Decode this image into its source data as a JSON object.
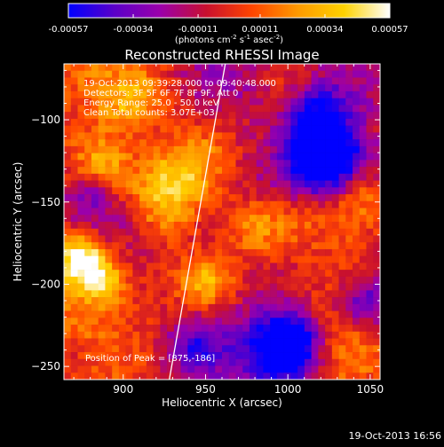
{
  "colorbar": {
    "ticks": [
      "-0.00057",
      "-0.00034",
      "-0.00011",
      "0.00011",
      "0.00034",
      "0.00057"
    ],
    "tick_values": [
      -0.00057,
      -0.00034,
      -0.00011,
      0.00011,
      0.00034,
      0.00057
    ],
    "range": [
      -0.00057,
      0.00057
    ],
    "units_parts": [
      "(photons cm",
      "-2",
      " s",
      "-1",
      " asec",
      "-2",
      ")"
    ],
    "colormap": [
      "#0000ff",
      "#5a00c8",
      "#9b00aa",
      "#c8102f",
      "#ff4500",
      "#ff9a00",
      "#ffd200",
      "#ffffff"
    ]
  },
  "chart_data": {
    "type": "heatmap",
    "title": "Reconstructed RHESSI Image",
    "xlabel": "Heliocentric X (arcsec)",
    "ylabel": "Heliocentric Y (arcsec)",
    "xlim": [
      864,
      1056
    ],
    "ylim": [
      -258,
      -66
    ],
    "x_ticks": [
      900,
      950,
      1000,
      1050
    ],
    "y_ticks": [
      -250,
      -200,
      -150,
      -100
    ],
    "x_tick_labels": [
      "900",
      "950",
      "1000",
      "1050"
    ],
    "y_tick_labels": [
      "−250",
      "−200",
      "−150",
      "−100"
    ],
    "limb_line": [
      [
        928,
        -258
      ],
      [
        962,
        -66
      ]
    ],
    "peak": [
      875,
      -186
    ]
  },
  "annotations": {
    "time_range": "19-Oct-2013 09:39:28.000 to 09:40:48.000",
    "detectors": "Detectors: 3F 5F 6F 7F 8F 9F, Att 0",
    "energy": "Energy Range: 25.0 - 50.0 keV",
    "clean": "Clean     Total counts: 3.07E+03",
    "peak_label": "Position of Peak = [875,-186]"
  },
  "footer": "19-Oct-2013 16:56"
}
